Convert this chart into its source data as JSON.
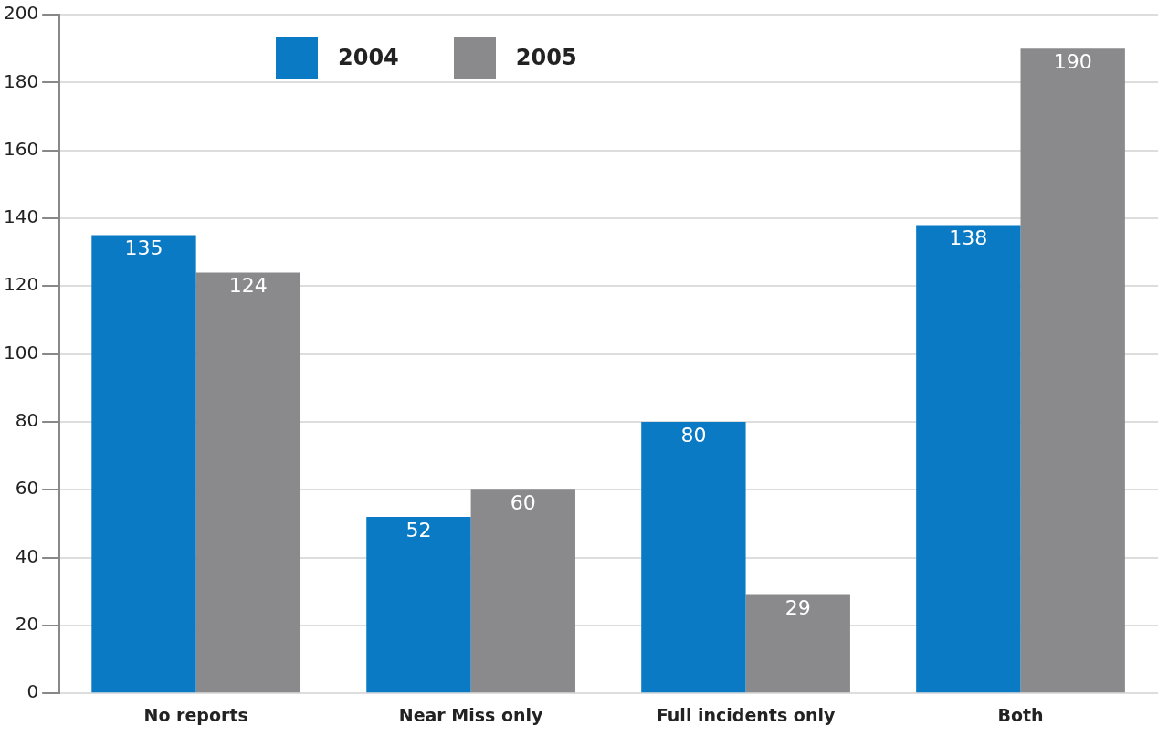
{
  "chart_data": {
    "type": "bar",
    "categories": [
      "No reports",
      "Near Miss only",
      "Full incidents only",
      "Both"
    ],
    "series": [
      {
        "name": "2004",
        "color": "#0a7ac4",
        "values": [
          135,
          52,
          80,
          138
        ]
      },
      {
        "name": "2005",
        "color": "#8a8a8c",
        "values": [
          124,
          60,
          29,
          190
        ]
      }
    ],
    "ylim": [
      0,
      200
    ],
    "yticks": [
      0,
      20,
      40,
      60,
      80,
      100,
      120,
      140,
      160,
      180,
      200
    ],
    "grid": "y",
    "legend": "top left",
    "data_labels": true
  }
}
